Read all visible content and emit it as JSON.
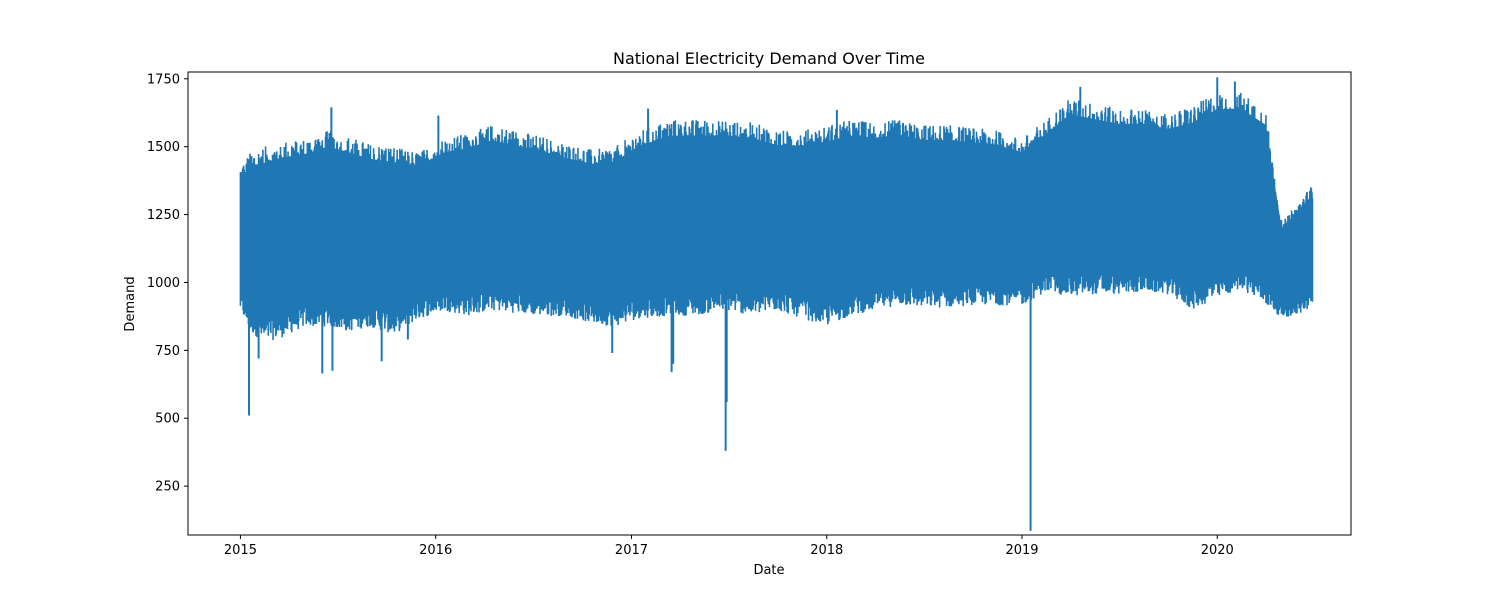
{
  "chart_data": {
    "type": "line",
    "title": "National Electricity Demand Over Time",
    "xlabel": "Date",
    "ylabel": "Demand",
    "x_tick_labels": [
      "2015",
      "2016",
      "2017",
      "2018",
      "2019",
      "2020"
    ],
    "y_tick_labels": [
      "250",
      "500",
      "750",
      "1000",
      "1250",
      "1500",
      "1750"
    ],
    "xlim": [
      "2014-09-25",
      "2020-09-07"
    ],
    "ylim": [
      70,
      1775
    ],
    "grid": false,
    "legend": "none",
    "line_color": "#1f77b4",
    "series": [
      {
        "x": [
          "2015-01-01",
          "2015-01-20",
          "2015-02-15",
          "2015-03-20",
          "2015-05-01",
          "2015-06-15",
          "2015-07-20",
          "2015-09-01",
          "2015-10-15",
          "2015-12-01",
          "2016-01-15",
          "2016-03-01",
          "2016-04-15",
          "2016-06-01",
          "2016-07-15",
          "2016-09-01",
          "2016-10-20",
          "2016-12-01",
          "2017-01-15",
          "2017-03-15",
          "2017-05-01",
          "2017-06-25",
          "2017-08-15",
          "2017-10-01",
          "2017-11-15",
          "2018-01-01",
          "2018-02-15",
          "2018-04-01",
          "2018-05-15",
          "2018-07-01",
          "2018-08-15",
          "2018-10-01",
          "2018-11-15",
          "2019-01-01",
          "2019-02-15",
          "2019-04-01",
          "2019-05-15",
          "2019-07-01",
          "2019-08-15",
          "2019-10-01",
          "2019-11-15",
          "2020-01-01",
          "2020-02-15",
          "2020-03-31",
          "2020-05-01",
          "2020-06-01",
          "2020-06-27"
        ],
        "low": [
          880,
          800,
          760,
          780,
          820,
          820,
          800,
          820,
          790,
          850,
          880,
          860,
          880,
          870,
          860,
          860,
          830,
          820,
          850,
          860,
          860,
          880,
          860,
          880,
          850,
          820,
          860,
          880,
          900,
          890,
          890,
          900,
          900,
          900,
          950,
          930,
          940,
          940,
          950,
          940,
          880,
          920,
          960,
          900,
          860,
          870,
          900
        ],
        "high": [
          1430,
          1480,
          1500,
          1520,
          1530,
          1560,
          1540,
          1510,
          1500,
          1480,
          1530,
          1550,
          1580,
          1560,
          1540,
          1510,
          1490,
          1500,
          1560,
          1600,
          1600,
          1600,
          1590,
          1560,
          1560,
          1580,
          1600,
          1590,
          1600,
          1580,
          1580,
          1570,
          1560,
          1530,
          1600,
          1680,
          1660,
          1640,
          1640,
          1620,
          1650,
          1700,
          1700,
          1640,
          1220,
          1300,
          1360
        ],
        "mid": [
          1150,
          1120,
          1120,
          1130,
          1150,
          1180,
          1160,
          1150,
          1140,
          1160,
          1190,
          1200,
          1210,
          1200,
          1190,
          1180,
          1170,
          1170,
          1190,
          1210,
          1220,
          1220,
          1210,
          1210,
          1200,
          1200,
          1210,
          1220,
          1220,
          1220,
          1220,
          1220,
          1220,
          1210,
          1250,
          1270,
          1270,
          1260,
          1260,
          1260,
          1260,
          1280,
          1300,
          1240,
          1050,
          1080,
          1120
        ]
      }
    ],
    "spikes": [
      {
        "x": "2015-01-17",
        "value": 510
      },
      {
        "x": "2015-02-04",
        "value": 720
      },
      {
        "x": "2015-06-03",
        "value": 665
      },
      {
        "x": "2015-06-22",
        "value": 675
      },
      {
        "x": "2015-09-22",
        "value": 710
      },
      {
        "x": "2015-11-10",
        "value": 790
      },
      {
        "x": "2016-11-26",
        "value": 740
      },
      {
        "x": "2017-03-17",
        "value": 670
      },
      {
        "x": "2017-03-20",
        "value": 700
      },
      {
        "x": "2017-06-26",
        "value": 380
      },
      {
        "x": "2017-06-28",
        "value": 560
      },
      {
        "x": "2019-01-17",
        "value": 85
      }
    ],
    "peaks": [
      {
        "x": "2015-06-20",
        "value": 1645
      },
      {
        "x": "2016-01-06",
        "value": 1615
      },
      {
        "x": "2017-02-01",
        "value": 1640
      },
      {
        "x": "2018-01-20",
        "value": 1635
      },
      {
        "x": "2019-04-20",
        "value": 1720
      },
      {
        "x": "2020-01-01",
        "value": 1755
      },
      {
        "x": "2020-02-03",
        "value": 1740
      }
    ]
  }
}
